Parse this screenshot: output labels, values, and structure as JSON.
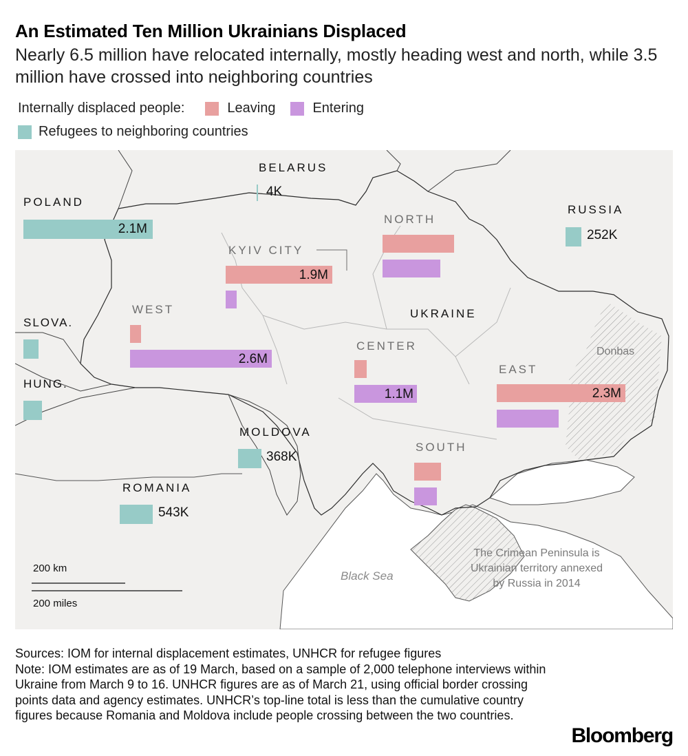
{
  "title": "An Estimated Ten Million Ukrainians Displaced",
  "subtitle": "Nearly 6.5 million have relocated internally, mostly heading west and north, while 3.5 million have crossed into neighboring countries",
  "legend": {
    "internal_label": "Internally displaced people:",
    "leaving_label": "Leaving",
    "entering_label": "Entering",
    "refugees_label": "Refugees to neighboring countries"
  },
  "colors": {
    "leaving": "#e8a09f",
    "entering": "#c996de",
    "refugees": "#97cbc7",
    "land": "#f1f0ee",
    "sea": "#ffffff"
  },
  "map": {
    "countries": {
      "belarus": "BELARUS",
      "poland": "POLAND",
      "russia": "RUSSIA",
      "slovakia": "SLOVA.",
      "hungary": "HUNG.",
      "moldova": "MOLDOVA",
      "romania": "ROMANIA",
      "ukraine": "UKRAINE"
    },
    "regions": {
      "north": "NORTH",
      "kyiv_city": "KYIV CITY",
      "west": "WEST",
      "center": "CENTER",
      "east": "EAST",
      "south": "SOUTH"
    },
    "labels": {
      "donbas": "Donbas",
      "black_sea": "Black Sea",
      "crimea_line1": "The Crimean Peninsula is",
      "crimea_line2": "Ukrainian territory annexed",
      "crimea_line3": "by Russia in 2014"
    },
    "scale": {
      "km": "200 km",
      "miles": "200 miles"
    }
  },
  "chart_data": {
    "type": "bar",
    "refugees": [
      {
        "country": "Poland",
        "value_label": "2.1M",
        "value": 2100000
      },
      {
        "country": "Belarus",
        "value_label": "4K",
        "value": 4000
      },
      {
        "country": "Russia",
        "value_label": "252K",
        "value": 252000
      },
      {
        "country": "Slovakia",
        "value": 250000
      },
      {
        "country": "Hungary",
        "value": 280000
      },
      {
        "country": "Moldova",
        "value_label": "368K",
        "value": 368000
      },
      {
        "country": "Romania",
        "value_label": "543K",
        "value": 543000
      }
    ],
    "internal": [
      {
        "region": "North",
        "leaving": 1050000,
        "entering": 850000
      },
      {
        "region": "Kyiv City",
        "leaving": 1900000,
        "leaving_label": "1.9M",
        "entering": 150000
      },
      {
        "region": "West",
        "leaving": 150000,
        "entering": 2600000,
        "entering_label": "2.6M"
      },
      {
        "region": "Center",
        "leaving": 170000,
        "entering": 1100000,
        "entering_label": "1.1M"
      },
      {
        "region": "East",
        "leaving": 2300000,
        "leaving_label": "2.3M",
        "entering": 1150000
      },
      {
        "region": "South",
        "leaving": 400000,
        "entering": 330000
      }
    ]
  },
  "footer": {
    "sources": "Sources: IOM for internal displacement estimates, UNHCR for refugee figures",
    "note": "Note: IOM estimates are as of 19 March, based on a sample of 2,000 telephone interviews within Ukraine from March 9 to 16. UNHCR figures are as of March 21, using official border crossing points data and agency estimates. UNHCR’s top-line total is less than the cumulative country figures because Romania and Moldova include people crossing between the two countries."
  },
  "brand": "Bloomberg"
}
